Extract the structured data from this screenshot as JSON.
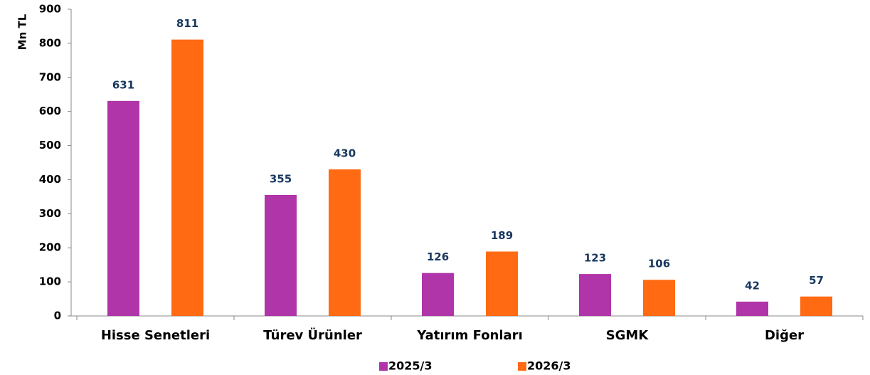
{
  "chart_data": {
    "type": "bar",
    "ylabel": "Mn TL",
    "categories": [
      "Hisse Senetleri",
      "Türev Ürünler",
      "Yatırım Fonları",
      "SGMK",
      "Diğer"
    ],
    "series": [
      {
        "name": "2025/3",
        "color": "#b035a8",
        "values": [
          631,
          355,
          126,
          123,
          42
        ]
      },
      {
        "name": "2026/3",
        "color": "#ff6a13",
        "values": [
          811,
          430,
          189,
          106,
          57
        ]
      }
    ],
    "ylim": [
      0,
      900
    ],
    "yticks": [
      0,
      100,
      200,
      300,
      400,
      500,
      600,
      700,
      800,
      900
    ],
    "grid": false,
    "legend": "bottom"
  }
}
